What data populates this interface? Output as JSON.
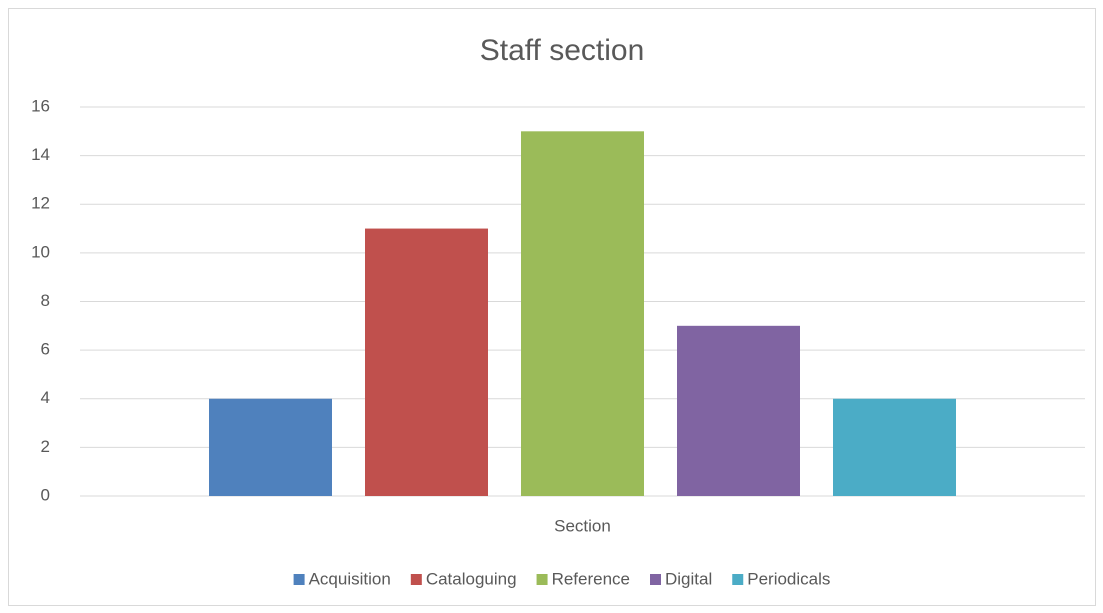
{
  "chart_data": {
    "type": "bar",
    "title": "Staff section",
    "categories": [
      "Section"
    ],
    "series": [
      {
        "name": "Acquisition",
        "color": "#4f81bd",
        "values": [
          4
        ]
      },
      {
        "name": "Cataloguing",
        "color": "#c0504d",
        "values": [
          11
        ]
      },
      {
        "name": "Reference",
        "color": "#9bbb59",
        "values": [
          15
        ]
      },
      {
        "name": "Digital",
        "color": "#8064a2",
        "values": [
          7
        ]
      },
      {
        "name": "Periodicals",
        "color": "#4bacc6",
        "values": [
          4
        ]
      }
    ],
    "ylim": [
      0,
      16
    ],
    "yticks": [
      0,
      2,
      4,
      6,
      8,
      10,
      12,
      14,
      16
    ],
    "grid": true,
    "legend": "bottom"
  }
}
